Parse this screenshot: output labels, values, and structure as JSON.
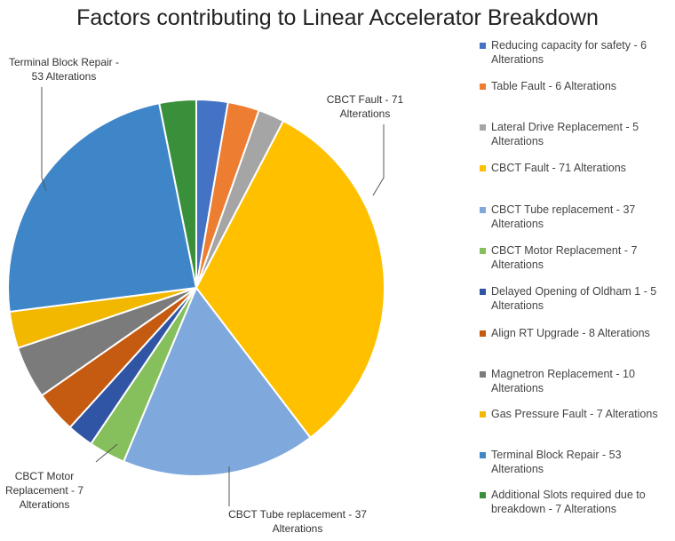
{
  "chart_data": {
    "type": "pie",
    "title": "Factors contributing to Linear Accelerator Breakdown",
    "slices": [
      {
        "label": "Reducing capacity for safety - 6 Alterations",
        "value": 6,
        "color": "#4472C4"
      },
      {
        "label": "Table Fault - 6 Alterations",
        "value": 6,
        "color": "#ED7D31"
      },
      {
        "label": "Lateral Drive Replacement - 5 Alterations",
        "value": 5,
        "color": "#A5A5A5"
      },
      {
        "label": "CBCT Fault - 71 Alterations",
        "value": 71,
        "color": "#FFC000"
      },
      {
        "label": "CBCT Tube replacement - 37 Alterations",
        "value": 37,
        "color": "#7FA8DC"
      },
      {
        "label": "CBCT Motor Replacement - 7 Alterations",
        "value": 7,
        "color": "#86C05C"
      },
      {
        "label": "Delayed Opening of Oldham 1 - 5 Alterations",
        "value": 5,
        "color": "#2F55A4"
      },
      {
        "label": "Align RT Upgrade - 8 Alterations",
        "value": 8,
        "color": "#C55A11"
      },
      {
        "label": "Magnetron Replacement - 10 Alterations",
        "value": 10,
        "color": "#7B7B7B"
      },
      {
        "label": "Gas Pressure Fault - 7 Alterations",
        "value": 7,
        "color": "#F2B800"
      },
      {
        "label": "Terminal Block Repair - 53 Alterations",
        "value": 53,
        "color": "#3F86C8"
      },
      {
        "label": "Additional Slots required due to breakdown - 7 Alterations",
        "value": 7,
        "color": "#3A8F3A"
      }
    ],
    "legend_position": "right"
  },
  "callouts": {
    "cbct_fault": "CBCT Fault - 71 Alterations",
    "terminal_block": "Terminal Block Repair - 53 Alterations",
    "cbct_tube": "CBCT Tube replacement - 37 Alterations",
    "cbct_motor": "CBCT Motor Replacement - 7 Alterations"
  }
}
